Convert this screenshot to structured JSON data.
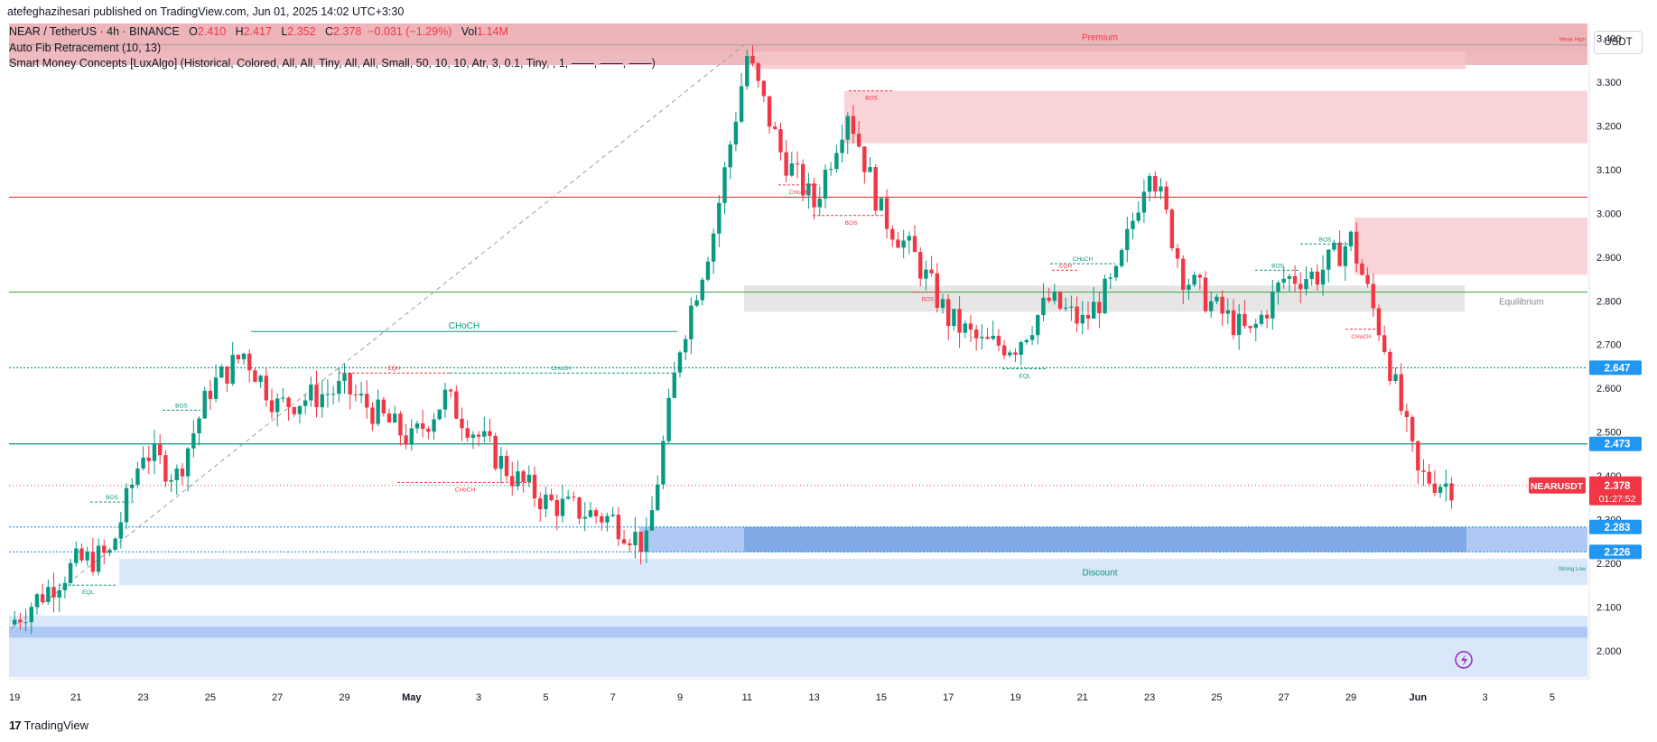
{
  "header": {
    "publisher_line": "atefeghazihesari published on TradingView.com, Jun 01, 2025 14:02 UTC+3:30"
  },
  "legend": {
    "symbol": "NEAR / TetherUS · 4h · BINANCE",
    "o_label": "O",
    "o_value": "2.410",
    "h_label": "H",
    "h_value": "2.417",
    "l_label": "L",
    "l_value": "2.352",
    "c_label": "C",
    "c_value": "2.378",
    "change": "−0.031 (−1.29%)",
    "vol_label": "Vol",
    "vol_value": "1.14M",
    "indicator_1": "Auto Fib Retracement (10, 13)",
    "indicator_2": "Smart Money Concepts [LuxAlgo] (Historical, Colored, All, All, Tiny, All, All, Small, 50, 10, 10, Atr, 3, 0.1, Tiny, , 1, ——, ——, ——)"
  },
  "currency_button": "USDT",
  "footer": {
    "brand": "TradingView",
    "logo_text": "17"
  },
  "colors": {
    "up": "#089981",
    "down": "#f23645",
    "premium_zone": "#f8d7da",
    "discount_zone": "#d6e4fb",
    "equilibrium_zone": "#e0e0e0",
    "price_tag": "#f23645",
    "level_tag": "#2196f3"
  },
  "chart_data": {
    "type": "candlestick",
    "symbol": "NEARUSDT",
    "timeframe": "4h",
    "y_range": [
      1.94,
      3.43
    ],
    "y_ticks": [
      "3.400",
      "3.300",
      "3.200",
      "3.100",
      "3.000",
      "2.900",
      "2.800",
      "2.700",
      "2.600",
      "2.500",
      "2.400",
      "2.300",
      "2.200",
      "2.100",
      "2.000"
    ],
    "x_ticks": [
      "19",
      "21",
      "23",
      "25",
      "27",
      "29",
      "May",
      "3",
      "5",
      "7",
      "9",
      "11",
      "13",
      "15",
      "17",
      "19",
      "21",
      "23",
      "25",
      "27",
      "29",
      "Jun",
      "3",
      "5"
    ],
    "x_tick_bold": [
      "May",
      "Jun"
    ],
    "key_closes": [
      {
        "date": "Apr 19",
        "close": 2.06
      },
      {
        "date": "Apr 21",
        "close": 2.2
      },
      {
        "date": "Apr 22",
        "close": 2.22
      },
      {
        "date": "Apr 23",
        "close": 2.46
      },
      {
        "date": "Apr 24",
        "close": 2.4
      },
      {
        "date": "Apr 25",
        "close": 2.6
      },
      {
        "date": "Apr 26",
        "close": 2.68
      },
      {
        "date": "Apr 27",
        "close": 2.56
      },
      {
        "date": "Apr 29",
        "close": 2.6
      },
      {
        "date": "May 1",
        "close": 2.48
      },
      {
        "date": "May 2",
        "close": 2.58
      },
      {
        "date": "May 4",
        "close": 2.4
      },
      {
        "date": "May 5",
        "close": 2.34
      },
      {
        "date": "May 7",
        "close": 2.3
      },
      {
        "date": "May 8",
        "close": 2.24
      },
      {
        "date": "May 9",
        "close": 2.7
      },
      {
        "date": "May 10",
        "close": 2.96
      },
      {
        "date": "May 11",
        "close": 3.36
      },
      {
        "date": "May 12",
        "close": 3.14
      },
      {
        "date": "May 13",
        "close": 3.02
      },
      {
        "date": "May 14",
        "close": 3.24
      },
      {
        "date": "May 15",
        "close": 3.0
      },
      {
        "date": "May 16",
        "close": 2.9
      },
      {
        "date": "May 17",
        "close": 2.76
      },
      {
        "date": "May 18",
        "close": 2.7
      },
      {
        "date": "May 19",
        "close": 2.7
      },
      {
        "date": "May 20",
        "close": 2.8
      },
      {
        "date": "May 21",
        "close": 2.75
      },
      {
        "date": "May 22",
        "close": 2.85
      },
      {
        "date": "May 23",
        "close": 3.12
      },
      {
        "date": "May 24",
        "close": 2.86
      },
      {
        "date": "May 25",
        "close": 2.78
      },
      {
        "date": "May 26",
        "close": 2.72
      },
      {
        "date": "May 27",
        "close": 2.85
      },
      {
        "date": "May 28",
        "close": 2.86
      },
      {
        "date": "May 29",
        "close": 2.94
      },
      {
        "date": "May 30",
        "close": 2.7
      },
      {
        "date": "May 31",
        "close": 2.4
      },
      {
        "date": "Jun 1",
        "close": 2.378
      }
    ],
    "horizontal_levels": [
      {
        "price": 3.037,
        "color": "#f23645",
        "style": "solid"
      },
      {
        "price": 2.82,
        "color": "#4caf50",
        "style": "solid"
      },
      {
        "price": 2.647,
        "color": "#089981",
        "style": "dotted",
        "tag": "2.647"
      },
      {
        "price": 2.473,
        "color": "#089981",
        "style": "solid",
        "tag": "2.473"
      },
      {
        "price": 2.283,
        "color": "#2196f3",
        "style": "dotted",
        "tag": "2.283"
      },
      {
        "price": 2.226,
        "color": "#2196f3",
        "style": "dotted",
        "tag": "2.226"
      }
    ],
    "current_price": {
      "label": "NEARUSDT",
      "value": "2.378",
      "countdown": "01:27:52"
    },
    "zones": [
      {
        "label": "Premium",
        "from": 3.37,
        "to": 3.43
      },
      {
        "label": "Equilibrium",
        "from": 2.78,
        "to": 2.83
      },
      {
        "label": "Discount",
        "from": 2.15,
        "to": 2.21
      }
    ],
    "annotations": [
      "CHoCH",
      "CHoCH",
      "CHoCH",
      "CHoCH",
      "CHoCH",
      "CHoCH",
      "BOS",
      "BOS",
      "BOS",
      "BOS",
      "BOS",
      "BOS",
      "BOS",
      "EQH",
      "EQH",
      "EQL",
      "EQL",
      "Weak High",
      "Strong Low"
    ]
  }
}
